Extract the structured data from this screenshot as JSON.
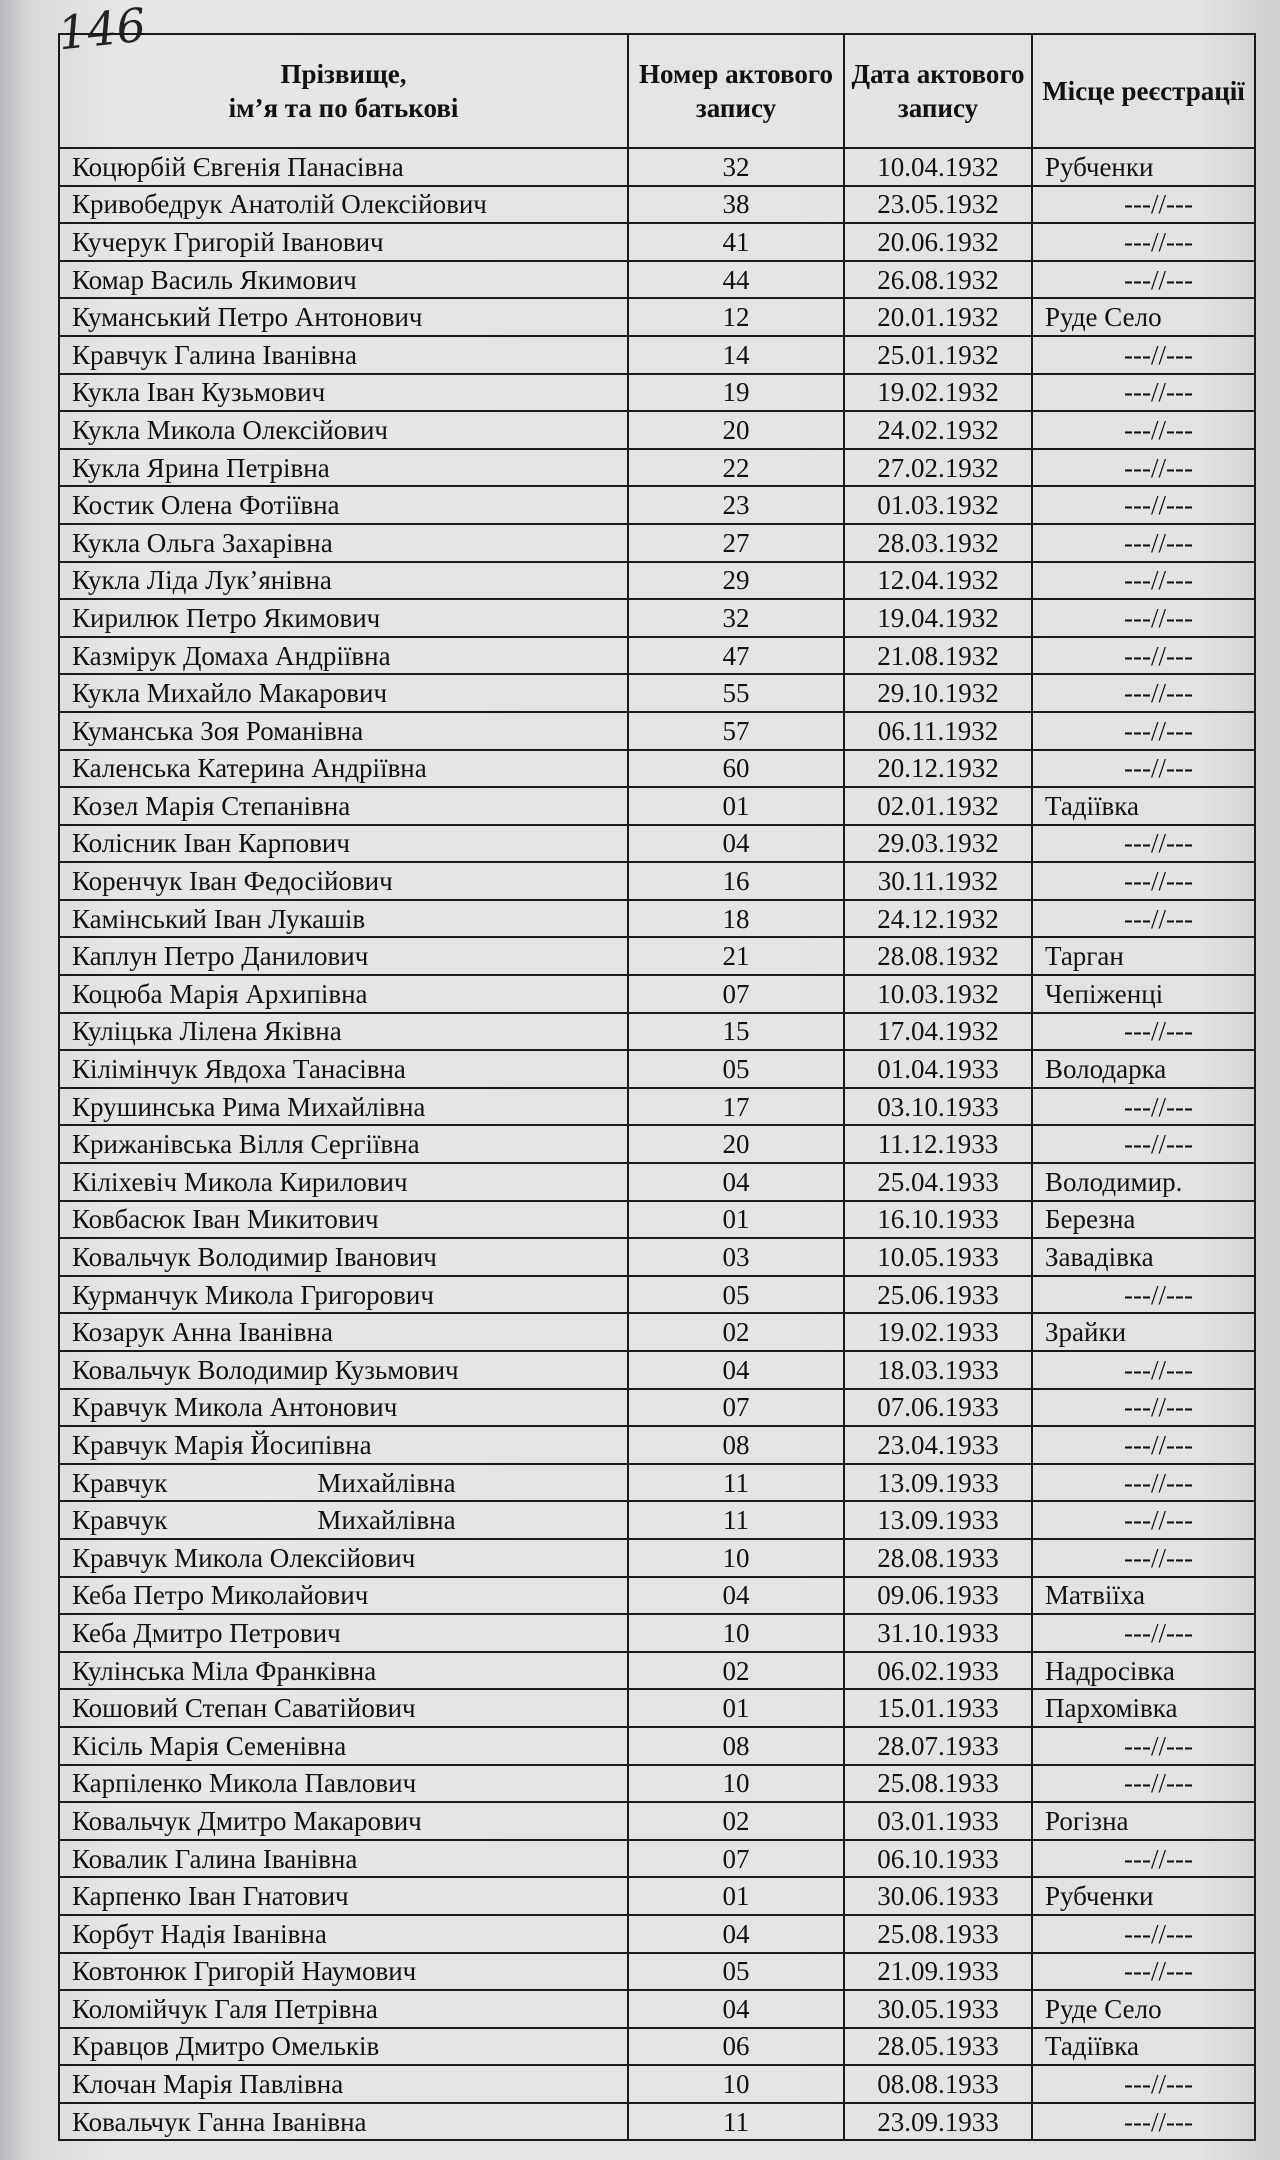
{
  "page_number": "146",
  "headers": {
    "name": "Прізвище,\nім’я та по батькові",
    "number": "Номер актового запису",
    "date": "Дата актового запису",
    "place": "Місце реєстрації"
  },
  "rows": [
    [
      "Коцюрбій Євгенія Панасівна",
      "32",
      "10.04.1932",
      "Рубченки"
    ],
    [
      "Кривобедрук Анатолій Олексійович",
      "38",
      "23.05.1932",
      "---//---"
    ],
    [
      "Кучерук Григорій Іванович",
      "41",
      "20.06.1932",
      "---//---"
    ],
    [
      "Комар Василь Якимович",
      "44",
      "26.08.1932",
      "---//---"
    ],
    [
      "Куманський Петро Антонович",
      "12",
      "20.01.1932",
      "Руде Село"
    ],
    [
      "Кравчук Галина Іванівна",
      "14",
      "25.01.1932",
      "---//---"
    ],
    [
      "Кукла Іван Кузьмович",
      "19",
      "19.02.1932",
      "---//---"
    ],
    [
      "Кукла Микола Олексійович",
      "20",
      "24.02.1932",
      "---//---"
    ],
    [
      "Кукла Ярина Петрівна",
      "22",
      "27.02.1932",
      "---//---"
    ],
    [
      "Костик Олена Фотіївна",
      "23",
      "01.03.1932",
      "---//---"
    ],
    [
      "Кукла Ольга Захарівна",
      "27",
      "28.03.1932",
      "---//---"
    ],
    [
      "Кукла Ліда Лук’янівна",
      "29",
      "12.04.1932",
      "---//---"
    ],
    [
      "Кирилюк Петро Якимович",
      "32",
      "19.04.1932",
      "---//---"
    ],
    [
      "Казмірук Домаха Андріївна",
      "47",
      "21.08.1932",
      "---//---"
    ],
    [
      "Кукла Михайло Макарович",
      "55",
      "29.10.1932",
      "---//---"
    ],
    [
      "Куманська Зоя Романівна",
      "57",
      "06.11.1932",
      "---//---"
    ],
    [
      "Каленська Катерина Андріївна",
      "60",
      "20.12.1932",
      "---//---"
    ],
    [
      "Козел Марія Степанівна",
      "01",
      "02.01.1932",
      "Тадіївка"
    ],
    [
      "Колісник Іван Карпович",
      "04",
      "29.03.1932",
      "---//---"
    ],
    [
      "Коренчук Іван Федосійович",
      "16",
      "30.11.1932",
      "---//---"
    ],
    [
      "Камінський Іван Лукашів",
      "18",
      "24.12.1932",
      "---//---"
    ],
    [
      "Каплун Петро Данилович",
      "21",
      "28.08.1932",
      "Тарган"
    ],
    [
      "Коцюба Марія Архипівна",
      "07",
      "10.03.1932",
      "Чепіженці"
    ],
    [
      "Куліцька Лілена Яківна",
      "15",
      "17.04.1932",
      "---//---"
    ],
    [
      "Кілімінчук Явдоха Танасівна",
      "05",
      "01.04.1933",
      "Володарка"
    ],
    [
      "Крушинська Рима Михайлівна",
      "17",
      "03.10.1933",
      "---//---"
    ],
    [
      "Крижанівська Вілля Сергіївна",
      "20",
      "11.12.1933",
      "---//---"
    ],
    [
      "Кіліхевіч Микола Кирилович",
      "04",
      "25.04.1933",
      "Володимир."
    ],
    [
      "Ковбасюк Іван Микитович",
      "01",
      "16.10.1933",
      "Березна"
    ],
    [
      "Ковальчук Володимир Іванович",
      "03",
      "10.05.1933",
      "Завадівка"
    ],
    [
      "Курманчук Микола Григорович",
      "05",
      "25.06.1933",
      "---//---"
    ],
    [
      "Козарук Анна Іванівна",
      "02",
      "19.02.1933",
      "Зрайки"
    ],
    [
      "Ковальчук Володимир Кузьмович",
      "04",
      "18.03.1933",
      "---//---"
    ],
    [
      "Кравчук Микола Антонович",
      "07",
      "07.06.1933",
      "---//---"
    ],
    [
      "Кравчук Марія Йосипівна",
      "08",
      "23.04.1933",
      "---//---"
    ],
    [
      "Кравчук|Михайлівна",
      "11",
      "13.09.1933",
      "---//---"
    ],
    [
      "Кравчук|Михайлівна",
      "11",
      "13.09.1933",
      "---//---"
    ],
    [
      "Кравчук Микола Олексійович",
      "10",
      "28.08.1933",
      "---//---"
    ],
    [
      "Кеба Петро Миколайович",
      "04",
      "09.06.1933",
      "Матвіїха"
    ],
    [
      "Кеба Дмитро Петрович",
      "10",
      "31.10.1933",
      "---//---"
    ],
    [
      "Кулінська Міла Франківна",
      "02",
      "06.02.1933",
      "Надросівка"
    ],
    [
      "Кошовий Степан Саватійович",
      "01",
      "15.01.1933",
      "Пархомівка"
    ],
    [
      "Кісіль Марія Семенівна",
      "08",
      "28.07.1933",
      "---//---"
    ],
    [
      "Карпіленко Микола Павлович",
      "10",
      "25.08.1933",
      "---//---"
    ],
    [
      "Ковальчук Дмитро Макарович",
      "02",
      "03.01.1933",
      "Рогізна"
    ],
    [
      "Ковалик Галина Іванівна",
      "07",
      "06.10.1933",
      "---//---"
    ],
    [
      "Карпенко Іван Гнатович",
      "01",
      "30.06.1933",
      "Рубченки"
    ],
    [
      "Корбут Надія Іванівна",
      "04",
      "25.08.1933",
      "---//---"
    ],
    [
      "Ковтонюк Григорій Наумович",
      "05",
      "21.09.1933",
      "---//---"
    ],
    [
      "Коломійчук Галя Петрівна",
      "04",
      "30.05.1933",
      "Руде Село"
    ],
    [
      "Кравцов Дмитро Омельків",
      "06",
      "28.05.1933",
      "Тадіївка"
    ],
    [
      "Клочан Марія Павлівна",
      "10",
      "08.08.1933",
      "---//---"
    ],
    [
      "Ковальчук Ганна Іванівна",
      "11",
      "23.09.1933",
      "---//---"
    ]
  ]
}
